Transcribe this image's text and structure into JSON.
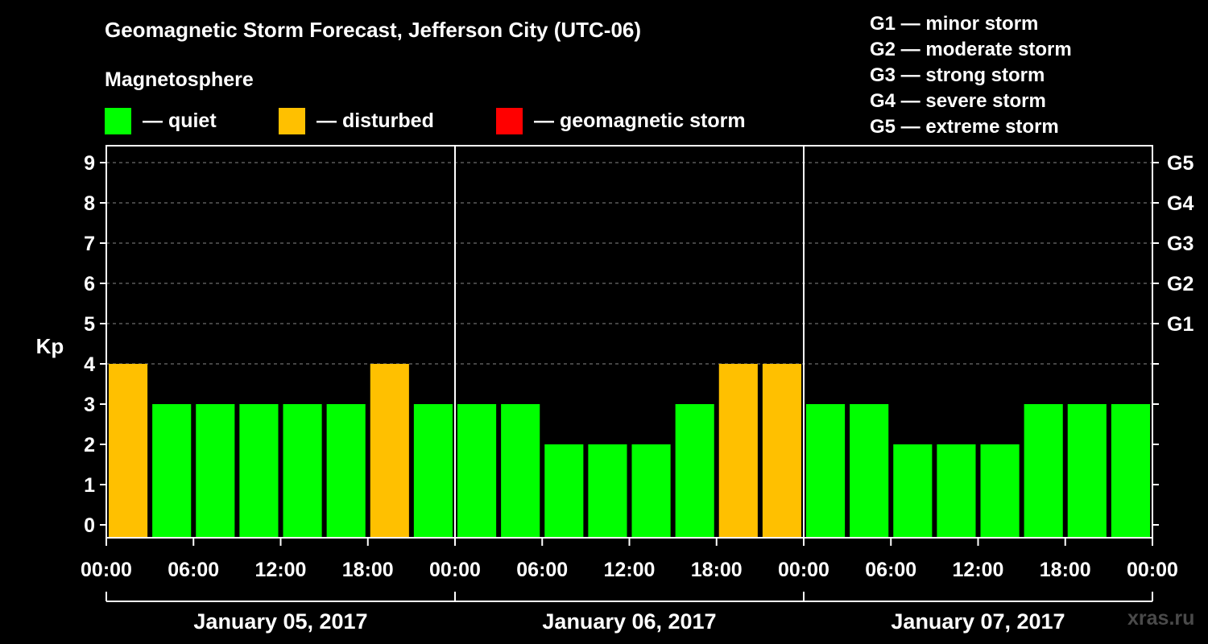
{
  "title": "Geomagnetic Storm Forecast, Jefferson City (UTC-06)",
  "legend": {
    "heading": "Magnetosphere",
    "items": [
      {
        "key": "quiet",
        "label": "— quiet",
        "color": "#00ff00"
      },
      {
        "key": "disturbed",
        "label": "— disturbed",
        "color": "#ffc000"
      },
      {
        "key": "storm",
        "label": "— geomagnetic storm",
        "color": "#ff0000"
      }
    ]
  },
  "g_scale": [
    {
      "level": "G1",
      "text": "G1 — minor storm"
    },
    {
      "level": "G2",
      "text": "G2 — moderate storm"
    },
    {
      "level": "G3",
      "text": "G3 — strong storm"
    },
    {
      "level": "G4",
      "text": "G4 — severe storm"
    },
    {
      "level": "G5",
      "text": "G5 — extreme storm"
    }
  ],
  "watermark": "xras.ru",
  "chart_data": {
    "type": "bar",
    "ylabel": "Kp",
    "ylim": [
      0,
      9
    ],
    "yticks": [
      0,
      1,
      2,
      3,
      4,
      5,
      6,
      7,
      8,
      9
    ],
    "right_ticks": [
      {
        "value": 5,
        "label": "G1"
      },
      {
        "value": 6,
        "label": "G2"
      },
      {
        "value": 7,
        "label": "G3"
      },
      {
        "value": 8,
        "label": "G4"
      },
      {
        "value": 9,
        "label": "G5"
      }
    ],
    "grid": true,
    "days": [
      "January 05, 2017",
      "January 06, 2017",
      "January 07, 2017"
    ],
    "time_ticks": [
      "00:00",
      "06:00",
      "12:00",
      "18:00",
      "00:00",
      "06:00",
      "12:00",
      "18:00",
      "00:00",
      "06:00",
      "12:00",
      "18:00",
      "00:00"
    ],
    "values": [
      4,
      3,
      3,
      3,
      3,
      3,
      4,
      3,
      3,
      3,
      2,
      2,
      2,
      3,
      4,
      4,
      3,
      3,
      2,
      2,
      2,
      3,
      3,
      3
    ],
    "status": [
      "disturbed",
      "quiet",
      "quiet",
      "quiet",
      "quiet",
      "quiet",
      "disturbed",
      "quiet",
      "quiet",
      "quiet",
      "quiet",
      "quiet",
      "quiet",
      "quiet",
      "disturbed",
      "disturbed",
      "quiet",
      "quiet",
      "quiet",
      "quiet",
      "quiet",
      "quiet",
      "quiet",
      "quiet"
    ]
  }
}
